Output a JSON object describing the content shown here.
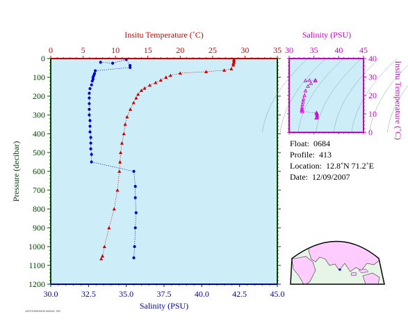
{
  "info": {
    "float_label": "Float:",
    "float": "0684",
    "profile_label": "Profile:",
    "profile": "413",
    "location_label": "Location:",
    "location": "12.8˚N  71.2˚E",
    "date_label": "Date:",
    "date": "12/09/2007"
  },
  "footer": "11P0TURE0000 000011 700",
  "colors": {
    "temperature": "#cc0000",
    "salinity": "#0000cc",
    "ts_axis": "#cc00cc",
    "pressure_axis": "#004400",
    "plot_bg": "#cdeef8",
    "land": "#ffccff",
    "ocean": "#e6f5e6"
  },
  "chart_data": [
    {
      "type": "line",
      "title": "",
      "ylabel": "Pressure (decibar)",
      "ylim": [
        1200,
        0
      ],
      "yticks": [
        0,
        100,
        200,
        300,
        400,
        500,
        600,
        700,
        800,
        900,
        1000,
        1100,
        1200
      ],
      "top_axis": {
        "label": "Insitu Temperature (˚C)",
        "lim": [
          0,
          35
        ],
        "ticks": [
          0,
          5,
          10,
          15,
          20,
          25,
          30,
          35
        ]
      },
      "bottom_axis": {
        "label": "Salinity (PSU)",
        "lim": [
          30,
          45
        ],
        "ticks": [
          "30.0",
          "32.5",
          "35.0",
          "37.5",
          "40.0",
          "42.5",
          "45.0"
        ]
      },
      "series": [
        {
          "variable": "temperature",
          "marker": "triangle",
          "points": [
            [
              28.3,
              5
            ],
            [
              28.3,
              12
            ],
            [
              28.3,
              20
            ],
            [
              28.2,
              27
            ],
            [
              28.2,
              35
            ],
            [
              27.9,
              55
            ],
            [
              26.8,
              62
            ],
            [
              24.0,
              70
            ],
            [
              20.0,
              78
            ],
            [
              18.5,
              90
            ],
            [
              17.8,
              100
            ],
            [
              17.0,
              115
            ],
            [
              16.2,
              128
            ],
            [
              15.3,
              142
            ],
            [
              14.5,
              158
            ],
            [
              14.0,
              170
            ],
            [
              13.5,
              190
            ],
            [
              13.2,
              210
            ],
            [
              12.8,
              235
            ],
            [
              12.3,
              270
            ],
            [
              11.8,
              310
            ],
            [
              11.5,
              350
            ],
            [
              11.3,
              400
            ],
            [
              11.0,
              450
            ],
            [
              10.8,
              500
            ],
            [
              10.7,
              550
            ],
            [
              10.6,
              600
            ],
            [
              10.3,
              700
            ],
            [
              9.8,
              800
            ],
            [
              9.0,
              900
            ],
            [
              8.3,
              1000
            ],
            [
              8.0,
              1050
            ],
            [
              7.8,
              1065
            ]
          ]
        },
        {
          "variable": "salinity",
          "marker": "circle",
          "points": [
            [
              33.3,
              20
            ],
            [
              34.1,
              25
            ],
            [
              35.0,
              5
            ],
            [
              35.25,
              37
            ],
            [
              35.25,
              48
            ],
            [
              32.95,
              65
            ],
            [
              32.9,
              80
            ],
            [
              32.85,
              90
            ],
            [
              32.8,
              100
            ],
            [
              32.8,
              110
            ],
            [
              32.75,
              120
            ],
            [
              32.7,
              140
            ],
            [
              32.6,
              160
            ],
            [
              32.55,
              185
            ],
            [
              32.55,
              210
            ],
            [
              32.55,
              240
            ],
            [
              32.55,
              270
            ],
            [
              32.55,
              300
            ],
            [
              32.6,
              330
            ],
            [
              32.6,
              360
            ],
            [
              32.6,
              390
            ],
            [
              32.65,
              420
            ],
            [
              32.65,
              450
            ],
            [
              32.65,
              480
            ],
            [
              32.7,
              510
            ],
            [
              32.7,
              550
            ],
            [
              35.5,
              600
            ],
            [
              35.6,
              680
            ],
            [
              35.6,
              740
            ],
            [
              35.65,
              820
            ],
            [
              35.6,
              900
            ],
            [
              35.55,
              1000
            ],
            [
              35.5,
              1060
            ]
          ]
        }
      ]
    },
    {
      "type": "scatter",
      "title": "",
      "xlabel": "Salinity (PSU)",
      "ylabel": "Insitu Temperature (˚C)",
      "xlim": [
        30,
        45
      ],
      "ylim": [
        0,
        40
      ],
      "xticks": [
        30,
        35,
        40,
        45
      ],
      "yticks": [
        0,
        10,
        20,
        30,
        40
      ],
      "marker": "triangle",
      "points": [
        [
          33.3,
          28.0
        ],
        [
          34.1,
          28.2
        ],
        [
          35.3,
          28.3
        ],
        [
          35.3,
          27.9
        ],
        [
          34.4,
          26.5
        ],
        [
          33.8,
          25.0
        ],
        [
          33.3,
          22.5
        ],
        [
          33.1,
          20.0
        ],
        [
          32.9,
          18.0
        ],
        [
          32.8,
          16.5
        ],
        [
          32.7,
          15.0
        ],
        [
          32.6,
          13.5
        ],
        [
          32.6,
          12.5
        ],
        [
          32.55,
          11.8
        ],
        [
          32.65,
          11.2
        ],
        [
          35.5,
          10.6
        ],
        [
          35.6,
          10.3
        ],
        [
          35.6,
          9.8
        ],
        [
          35.65,
          9.0
        ],
        [
          35.6,
          8.3
        ],
        [
          35.55,
          8.0
        ],
        [
          35.5,
          7.8
        ]
      ]
    }
  ]
}
